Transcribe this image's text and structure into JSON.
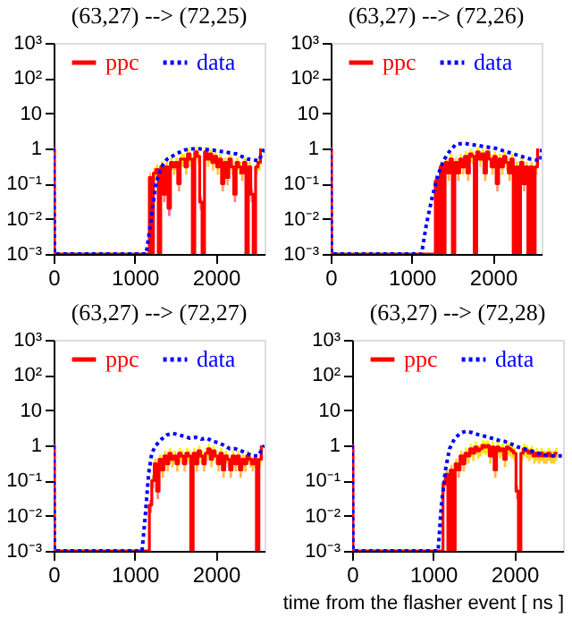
{
  "chart_data": [
    {
      "type": "line",
      "title": "(63,27) --> (72,25)",
      "xlim": [
        0,
        2600
      ],
      "xticks": [
        0,
        1000,
        2000
      ],
      "ylim": [
        0.001,
        1000
      ],
      "yticks": [
        {
          "value": 0.001,
          "label": "10⁻³"
        },
        {
          "value": 0.01,
          "label": "10⁻²"
        },
        {
          "value": 0.1,
          "label": "10⁻¹"
        },
        1,
        10,
        {
          "value": 100,
          "label": "10²"
        },
        {
          "value": 1000,
          "label": "10³"
        }
      ],
      "log": true,
      "legend": "top",
      "series": [
        {
          "name": "ppc",
          "type": "step",
          "color": "#ff0000",
          "line_style": "solid",
          "x": [
            0,
            10,
            1150,
            1180,
            1200,
            1230,
            1260,
            1290,
            1320,
            1350,
            1380,
            1410,
            1440,
            1470,
            1500,
            1530,
            1560,
            1590,
            1620,
            1650,
            1680,
            1710,
            1740,
            1770,
            1800,
            1830,
            1860,
            1890,
            1920,
            1950,
            1980,
            2010,
            2040,
            2070,
            2100,
            2130,
            2160,
            2190,
            2220,
            2250,
            2280,
            2310,
            2340,
            2370,
            2400,
            2430,
            2460,
            2490,
            2520,
            2550
          ],
          "values": [
            1,
            0.001,
            0.001,
            0.15,
            0.001,
            0.2,
            0.25,
            0.001,
            0.3,
            0.05,
            0.3,
            0.02,
            0.4,
            0.3,
            0.4,
            0.1,
            0.5,
            0.5,
            0.3,
            0.7,
            0.5,
            0.001,
            0.8,
            0.6,
            0.03,
            0.001,
            0.8,
            0.5,
            0.7,
            0.4,
            0.6,
            0.3,
            0.5,
            0.1,
            0.4,
            0.15,
            0.5,
            0.3,
            0.05,
            0.4,
            0.3,
            0.2,
            0.4,
            0.001,
            0.3,
            0.05,
            0.001,
            0.3,
            0.4,
            1
          ],
          "lower": [
            1,
            0.001,
            0.001,
            0.09,
            0.001,
            0.12,
            0.15,
            0.001,
            0.18,
            0.03,
            0.18,
            0.012,
            0.24,
            0.18,
            0.24,
            0.06,
            0.3,
            0.3,
            0.18,
            0.42,
            0.3,
            0.001,
            0.48,
            0.36,
            0.018,
            0.001,
            0.48,
            0.3,
            0.42,
            0.24,
            0.36,
            0.18,
            0.3,
            0.06,
            0.24,
            0.09,
            0.3,
            0.18,
            0.03,
            0.24,
            0.18,
            0.12,
            0.24,
            0.001,
            0.18,
            0.03,
            0.001,
            0.18,
            0.24,
            1
          ],
          "upper": [
            1,
            0.001,
            0.001,
            0.21,
            0.001,
            0.28,
            0.35,
            0.001,
            0.42,
            0.07,
            0.42,
            0.028,
            0.56,
            0.42,
            0.56,
            0.14,
            0.7,
            0.7,
            0.42,
            0.98,
            0.7,
            0.001,
            1.1,
            0.84,
            0.042,
            0.001,
            1.1,
            0.7,
            0.98,
            0.56,
            0.84,
            0.42,
            0.7,
            0.14,
            0.56,
            0.21,
            0.7,
            0.42,
            0.07,
            0.56,
            0.42,
            0.28,
            0.56,
            0.001,
            0.42,
            0.07,
            0.001,
            0.42,
            0.56,
            1
          ]
        },
        {
          "name": "data",
          "type": "line",
          "color": "#0000ff",
          "line_style": "dotted",
          "x": [
            0,
            10,
            1140,
            1190,
            1260,
            1330,
            1400,
            1510,
            1610,
            1750,
            1960,
            2100,
            2250,
            2390,
            2530,
            2600
          ],
          "values": [
            1,
            0.001,
            0.001,
            0.006,
            0.1,
            0.3,
            0.5,
            0.7,
            0.9,
            1,
            0.9,
            0.8,
            0.7,
            0.5,
            0.45,
            1
          ]
        }
      ]
    },
    {
      "type": "line",
      "title": "(63,27) --> (72,26)",
      "xlim": [
        0,
        2600
      ],
      "xticks": [
        0,
        1000,
        2000
      ],
      "ylim": [
        0.001,
        1000
      ],
      "yticks": [
        {
          "value": 0.001,
          "label": "10⁻³"
        },
        {
          "value": 0.01,
          "label": "10⁻²"
        },
        {
          "value": 0.1,
          "label": "10⁻¹"
        },
        1,
        10,
        {
          "value": 100,
          "label": "10²"
        },
        {
          "value": 1000,
          "label": "10³"
        }
      ],
      "log": true,
      "legend": "top",
      "series": [
        {
          "name": "ppc",
          "type": "step",
          "color": "#ff0000",
          "line_style": "solid",
          "x": [
            0,
            10,
            1260,
            1290,
            1320,
            1350,
            1380,
            1410,
            1440,
            1470,
            1500,
            1530,
            1560,
            1590,
            1620,
            1650,
            1680,
            1710,
            1740,
            1770,
            1800,
            1830,
            1860,
            1890,
            1920,
            1950,
            1980,
            2010,
            2040,
            2070,
            2100,
            2130,
            2160,
            2190,
            2220,
            2250,
            2280,
            2310,
            2340,
            2370,
            2400,
            2430,
            2460,
            2490,
            2520,
            2550
          ],
          "values": [
            1,
            0.001,
            0.001,
            0.12,
            0.001,
            0.3,
            0.001,
            0.4,
            0.2,
            0.5,
            0.001,
            0.4,
            0.2,
            0.5,
            0.3,
            0.6,
            0.2,
            0.7,
            0.6,
            0.001,
            0.8,
            0.5,
            0.7,
            0.2,
            0.8,
            0.5,
            0.3,
            0.6,
            0.1,
            0.5,
            0.3,
            0.6,
            0.4,
            0.2,
            0.5,
            0.001,
            0.3,
            0.001,
            0.4,
            0.1,
            0.3,
            0.001,
            0.3,
            0.001,
            0.3,
            1
          ],
          "lower": [
            1,
            0.001,
            0.001,
            0.07,
            0.001,
            0.18,
            0.001,
            0.24,
            0.12,
            0.3,
            0.001,
            0.24,
            0.12,
            0.3,
            0.18,
            0.36,
            0.12,
            0.42,
            0.36,
            0.001,
            0.48,
            0.3,
            0.42,
            0.12,
            0.48,
            0.3,
            0.18,
            0.36,
            0.06,
            0.3,
            0.18,
            0.36,
            0.24,
            0.12,
            0.3,
            0.001,
            0.18,
            0.001,
            0.24,
            0.06,
            0.18,
            0.001,
            0.18,
            0.001,
            0.18,
            1
          ],
          "upper": [
            1,
            0.001,
            0.001,
            0.17,
            0.001,
            0.42,
            0.001,
            0.56,
            0.28,
            0.7,
            0.001,
            0.56,
            0.28,
            0.7,
            0.42,
            0.84,
            0.28,
            0.98,
            0.84,
            0.001,
            1.1,
            0.7,
            0.98,
            0.28,
            1.1,
            0.7,
            0.42,
            0.84,
            0.14,
            0.7,
            0.42,
            0.84,
            0.56,
            0.28,
            0.7,
            0.001,
            0.42,
            0.001,
            0.56,
            0.14,
            0.42,
            0.001,
            0.42,
            0.001,
            0.42,
            1
          ]
        },
        {
          "name": "data",
          "type": "line",
          "color": "#0000ff",
          "line_style": "dotted",
          "x": [
            0,
            10,
            1120,
            1180,
            1250,
            1320,
            1390,
            1460,
            1540,
            1640,
            1820,
            2040,
            2250,
            2460,
            2590,
            2600
          ],
          "values": [
            1,
            0.001,
            0.001,
            0.007,
            0.04,
            0.17,
            0.45,
            0.8,
            1.3,
            1.4,
            1.2,
            1,
            0.7,
            0.5,
            0.45,
            1
          ]
        }
      ]
    },
    {
      "type": "line",
      "title": "(63,27) --> (72,27)",
      "xlim": [
        0,
        2600
      ],
      "xticks": [
        0,
        1000,
        2000
      ],
      "ylim": [
        0.001,
        1000
      ],
      "yticks": [
        {
          "value": 0.001,
          "label": "10⁻³"
        },
        {
          "value": 0.01,
          "label": "10⁻²"
        },
        {
          "value": 0.1,
          "label": "10⁻¹"
        },
        1,
        10,
        {
          "value": 100,
          "label": "10²"
        },
        {
          "value": 1000,
          "label": "10³"
        }
      ],
      "log": true,
      "legend": "top",
      "series": [
        {
          "name": "ppc",
          "type": "step",
          "color": "#ff0000",
          "line_style": "solid",
          "x": [
            0,
            10,
            1150,
            1180,
            1210,
            1240,
            1270,
            1300,
            1330,
            1360,
            1390,
            1420,
            1450,
            1480,
            1510,
            1540,
            1570,
            1600,
            1630,
            1660,
            1690,
            1720,
            1750,
            1780,
            1810,
            1840,
            1870,
            1900,
            1930,
            1960,
            1990,
            2020,
            2050,
            2080,
            2110,
            2140,
            2170,
            2200,
            2230,
            2260,
            2290,
            2320,
            2350,
            2380,
            2410,
            2440,
            2470,
            2500,
            2530,
            2560
          ],
          "values": [
            1,
            0.001,
            0.001,
            0.02,
            0.1,
            0.3,
            0.05,
            0.4,
            0.2,
            0.5,
            0.3,
            0.6,
            0.4,
            0.5,
            0.3,
            0.6,
            0.5,
            0.3,
            0.6,
            0.5,
            0.001,
            0.6,
            0.3,
            0.7,
            0.5,
            0.3,
            0.6,
            0.8,
            0.4,
            0.7,
            0.5,
            0.3,
            0.6,
            0.2,
            0.5,
            0.4,
            0.2,
            0.5,
            0.3,
            0.5,
            0.2,
            0.4,
            0.3,
            0.5,
            0.4,
            0.3,
            0.4,
            0.001,
            0.4,
            1
          ],
          "lower": [
            1,
            0.001,
            0.001,
            0.012,
            0.06,
            0.18,
            0.03,
            0.24,
            0.12,
            0.3,
            0.18,
            0.36,
            0.24,
            0.3,
            0.18,
            0.36,
            0.3,
            0.18,
            0.36,
            0.3,
            0.001,
            0.36,
            0.18,
            0.42,
            0.3,
            0.18,
            0.36,
            0.48,
            0.24,
            0.42,
            0.3,
            0.18,
            0.36,
            0.12,
            0.3,
            0.24,
            0.12,
            0.3,
            0.18,
            0.3,
            0.12,
            0.24,
            0.18,
            0.3,
            0.24,
            0.18,
            0.24,
            0.001,
            0.24,
            1
          ],
          "upper": [
            1,
            0.001,
            0.001,
            0.028,
            0.14,
            0.42,
            0.07,
            0.56,
            0.28,
            0.7,
            0.42,
            0.84,
            0.56,
            0.7,
            0.42,
            0.84,
            0.7,
            0.42,
            0.84,
            0.7,
            0.001,
            0.84,
            0.42,
            0.98,
            0.7,
            0.42,
            0.84,
            1.1,
            0.56,
            0.98,
            0.7,
            0.42,
            0.84,
            0.28,
            0.7,
            0.56,
            0.28,
            0.7,
            0.42,
            0.7,
            0.28,
            0.56,
            0.42,
            0.7,
            0.56,
            0.42,
            0.56,
            0.001,
            0.56,
            1
          ]
        },
        {
          "name": "data",
          "type": "line",
          "color": "#0000ff",
          "line_style": "dotted",
          "x": [
            0,
            10,
            1090,
            1130,
            1170,
            1210,
            1260,
            1330,
            1400,
            1470,
            1540,
            1610,
            1680,
            1750,
            1820,
            1890,
            1960,
            2030,
            2100,
            2170,
            2240,
            2310,
            2380,
            2450,
            2520,
            2600
          ],
          "values": [
            1,
            0.001,
            0.001,
            0.01,
            0.15,
            0.6,
            1,
            1.5,
            2,
            2.2,
            2,
            1.8,
            1.6,
            1.7,
            1.5,
            1.6,
            1.3,
            1.2,
            1,
            0.8,
            0.8,
            0.7,
            0.6,
            0.5,
            0.5,
            1
          ]
        }
      ]
    },
    {
      "type": "line",
      "title": "(63,27) --> (72,28)",
      "xlabel": "time from the flasher event [ ns ]",
      "xlim": [
        0,
        2600
      ],
      "xticks": [
        0,
        1000,
        2000
      ],
      "ylim": [
        0.001,
        1000
      ],
      "yticks": [
        {
          "value": 0.001,
          "label": "10⁻³"
        },
        {
          "value": 0.01,
          "label": "10⁻²"
        },
        {
          "value": 0.1,
          "label": "10⁻¹"
        },
        1,
        10,
        {
          "value": 100,
          "label": "10²"
        },
        {
          "value": 1000,
          "label": "10³"
        }
      ],
      "log": true,
      "legend": "top",
      "series": [
        {
          "name": "ppc",
          "type": "step",
          "color": "#ff0000",
          "line_style": "solid",
          "x": [
            0,
            10,
            1100,
            1120,
            1150,
            1180,
            1210,
            1240,
            1270,
            1300,
            1330,
            1360,
            1390,
            1420,
            1450,
            1480,
            1510,
            1540,
            1570,
            1600,
            1630,
            1660,
            1690,
            1720,
            1750,
            1780,
            1810,
            1840,
            1870,
            1900,
            1930,
            1960,
            1990,
            2020,
            2050,
            2080,
            2110,
            2140,
            2170,
            2200,
            2230,
            2260,
            2290,
            2320,
            2350,
            2380,
            2410,
            2440,
            2470,
            2500,
            2530
          ],
          "values": [
            1,
            0.001,
            0.001,
            0.08,
            0.15,
            0.001,
            0.2,
            0.001,
            0.3,
            0.2,
            0.5,
            0.3,
            0.6,
            0.5,
            0.8,
            0.6,
            0.9,
            0.7,
            0.8,
            1,
            0.9,
            1,
            0.5,
            0.9,
            0.2,
            0.9,
            0.7,
            0.8,
            0.4,
            0.9,
            0.8,
            0.7,
            0.6,
            0.05,
            0.001,
            0.6,
            0.8,
            0.7,
            0.6,
            0.7,
            0.5,
            0.6,
            0.5,
            0.6,
            0.5,
            0.5,
            0.6,
            0.5,
            0.5,
            0.6,
            0.6
          ],
          "lower": [
            1,
            0.001,
            0.001,
            0.048,
            0.09,
            0.001,
            0.12,
            0.001,
            0.18,
            0.12,
            0.3,
            0.18,
            0.36,
            0.3,
            0.48,
            0.36,
            0.54,
            0.42,
            0.48,
            0.6,
            0.54,
            0.6,
            0.3,
            0.54,
            0.12,
            0.54,
            0.42,
            0.48,
            0.24,
            0.54,
            0.48,
            0.42,
            0.36,
            0.03,
            0.001,
            0.36,
            0.48,
            0.42,
            0.36,
            0.42,
            0.3,
            0.36,
            0.3,
            0.36,
            0.3,
            0.3,
            0.36,
            0.3,
            0.3,
            0.36,
            0.36
          ],
          "upper": [
            1,
            0.001,
            0.001,
            0.11,
            0.21,
            0.001,
            0.28,
            0.001,
            0.42,
            0.28,
            0.7,
            0.42,
            0.84,
            0.7,
            1.1,
            0.84,
            1.3,
            0.98,
            1.1,
            1.4,
            1.3,
            1.4,
            0.7,
            1.3,
            0.28,
            1.3,
            0.98,
            1.1,
            0.56,
            1.3,
            1.1,
            0.98,
            0.84,
            0.07,
            0.001,
            0.84,
            1.1,
            0.98,
            0.84,
            0.98,
            0.7,
            0.84,
            0.7,
            0.84,
            0.7,
            0.7,
            0.84,
            0.7,
            0.7,
            0.84,
            0.84
          ]
        },
        {
          "name": "data",
          "type": "line",
          "color": "#0000ff",
          "line_style": "dotted",
          "x": [
            0,
            10,
            1060,
            1100,
            1150,
            1200,
            1260,
            1330,
            1400,
            1480,
            1560,
            1640,
            1720,
            1800,
            1880,
            1960,
            2040,
            2120,
            2200,
            2280,
            2360,
            2440,
            2520,
            2600
          ],
          "values": [
            1,
            0.001,
            0.001,
            0.02,
            0.2,
            0.8,
            1.5,
            2.2,
            2.5,
            2.3,
            2,
            1.8,
            1.6,
            1.4,
            1.3,
            1.1,
            0.9,
            0.8,
            0.7,
            0.6,
            0.55,
            0.5,
            0.5,
            0.5
          ]
        }
      ]
    }
  ]
}
